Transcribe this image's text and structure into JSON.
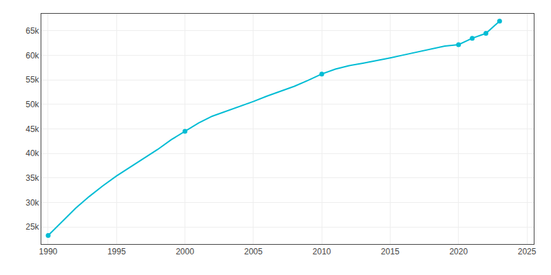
{
  "chart_data": {
    "type": "line",
    "series": [
      {
        "type": "line",
        "color": "#00BCD4",
        "x": [
          1990,
          1991,
          1992,
          1993,
          1994,
          1995,
          1996,
          1997,
          1998,
          1999,
          2000,
          2001,
          2002,
          2003,
          2004,
          2005,
          2006,
          2007,
          2008,
          2009,
          2010,
          2011,
          2012,
          2013,
          2014,
          2015,
          2016,
          2017,
          2018,
          2019,
          2020,
          2021,
          2022,
          2023
        ],
        "values": [
          23260,
          26000,
          28800,
          31200,
          33400,
          35400,
          37200,
          39000,
          40800,
          42800,
          44503,
          46200,
          47600,
          48600,
          49500,
          50600,
          51700,
          52700,
          53700,
          54900,
          56199,
          57200,
          57900,
          58400,
          58900,
          59500,
          60100,
          60700,
          61300,
          61900,
          62200,
          63500,
          64500,
          67000
        ]
      },
      {
        "type": "scatter",
        "marker": "circle",
        "color": "#00BCD4",
        "x": [
          1990,
          2000,
          2010,
          2020,
          2021,
          2022,
          2023
        ],
        "values": [
          23260,
          44503,
          56199,
          62200,
          63500,
          64500,
          67000
        ]
      }
    ],
    "xlim": [
      1989.5,
      2025.5
    ],
    "ylim": [
      21500,
      68500
    ],
    "xticks": [
      1990,
      1995,
      2000,
      2005,
      2010,
      2015,
      2020,
      2025
    ],
    "yticks": [
      {
        "value": 25000,
        "label": "25k"
      },
      {
        "value": 30000,
        "label": "30k"
      },
      {
        "value": 35000,
        "label": "35k"
      },
      {
        "value": 40000,
        "label": "40k"
      },
      {
        "value": 45000,
        "label": "45k"
      },
      {
        "value": 50000,
        "label": "50k"
      },
      {
        "value": 55000,
        "label": "55k"
      },
      {
        "value": 60000,
        "label": "60k"
      },
      {
        "value": 65000,
        "label": "65k"
      }
    ],
    "grid": true
  }
}
